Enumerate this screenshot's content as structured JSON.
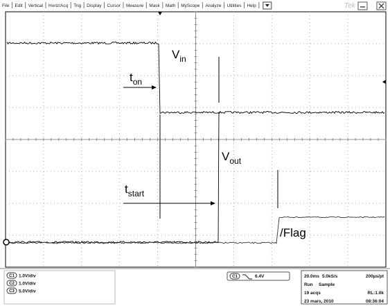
{
  "menu": [
    "File",
    "Edit",
    "Vertical",
    "Horiz/Acq",
    "Trig",
    "Display",
    "Cursor",
    "Measure",
    "Mask",
    "Math",
    "MyScope",
    "Analyze",
    "Utilities",
    "Help"
  ],
  "brand": "Tek",
  "annotations": {
    "vin": {
      "base": "V",
      "sub": "in"
    },
    "ton": {
      "base": "t",
      "sub": "on"
    },
    "vout": {
      "base": "V",
      "sub": "out"
    },
    "tstart": {
      "base": "t",
      "sub": "start"
    },
    "flag": "/Flag"
  },
  "channels": [
    {
      "name": "C1",
      "scale": "1.0V/div"
    },
    {
      "name": "C2",
      "scale": "1.0V/div"
    },
    {
      "name": "C3",
      "scale": "5.0V/div"
    }
  ],
  "trigger": {
    "channel": "C1",
    "level": "6.4V"
  },
  "acquisition": {
    "timebase": "20.0ms",
    "sample_rate": "5.0kS/s",
    "resolution": "200µs/pt",
    "state": "Run",
    "mode": "Sample",
    "acqs": "19 acqs",
    "record_length": "RL:1.0k",
    "date": "23 mars, 2010",
    "time": "08:36:04"
  }
}
